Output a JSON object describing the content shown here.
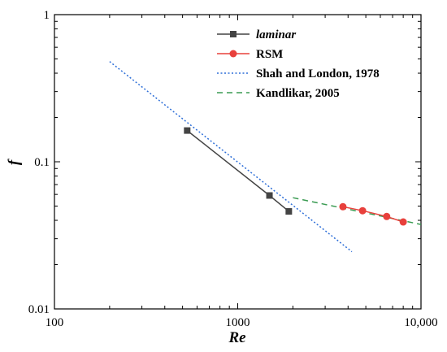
{
  "chart_data": {
    "type": "line",
    "title": "",
    "xlabel": "Re",
    "ylabel": "f",
    "xscale": "log",
    "yscale": "log",
    "xlim": [
      100,
      10000
    ],
    "ylim": [
      0.01,
      1
    ],
    "xticks": [
      {
        "value": 100,
        "label": "100"
      },
      {
        "value": 1000,
        "label": "1000"
      },
      {
        "value": 10000,
        "label": "10,000"
      }
    ],
    "yticks": [
      {
        "value": 0.01,
        "label": "0.01"
      },
      {
        "value": 0.1,
        "label": "0.1"
      },
      {
        "value": 1,
        "label": "1"
      }
    ],
    "grid": false,
    "legend_position": "top-right",
    "series": [
      {
        "name": "laminar",
        "style": "solid-square-markers",
        "color": "#444444",
        "x": [
          530,
          1490,
          1900
        ],
        "y": [
          0.163,
          0.059,
          0.046
        ]
      },
      {
        "name": "RSM",
        "style": "solid-circle-markers",
        "color": "#e8403c",
        "x": [
          3750,
          4800,
          6500,
          8000
        ],
        "y": [
          0.0495,
          0.0465,
          0.0425,
          0.039
        ]
      },
      {
        "name": "Shah and London, 1978",
        "style": "dotted",
        "color": "#2e6fd8",
        "x": [
          200,
          4200
        ],
        "y": [
          0.48,
          0.0245
        ]
      },
      {
        "name": "Kandlikar, 2005",
        "style": "dashed",
        "color": "#3a9b52",
        "x": [
          2000,
          10000
        ],
        "y": [
          0.057,
          0.0375
        ]
      }
    ]
  }
}
